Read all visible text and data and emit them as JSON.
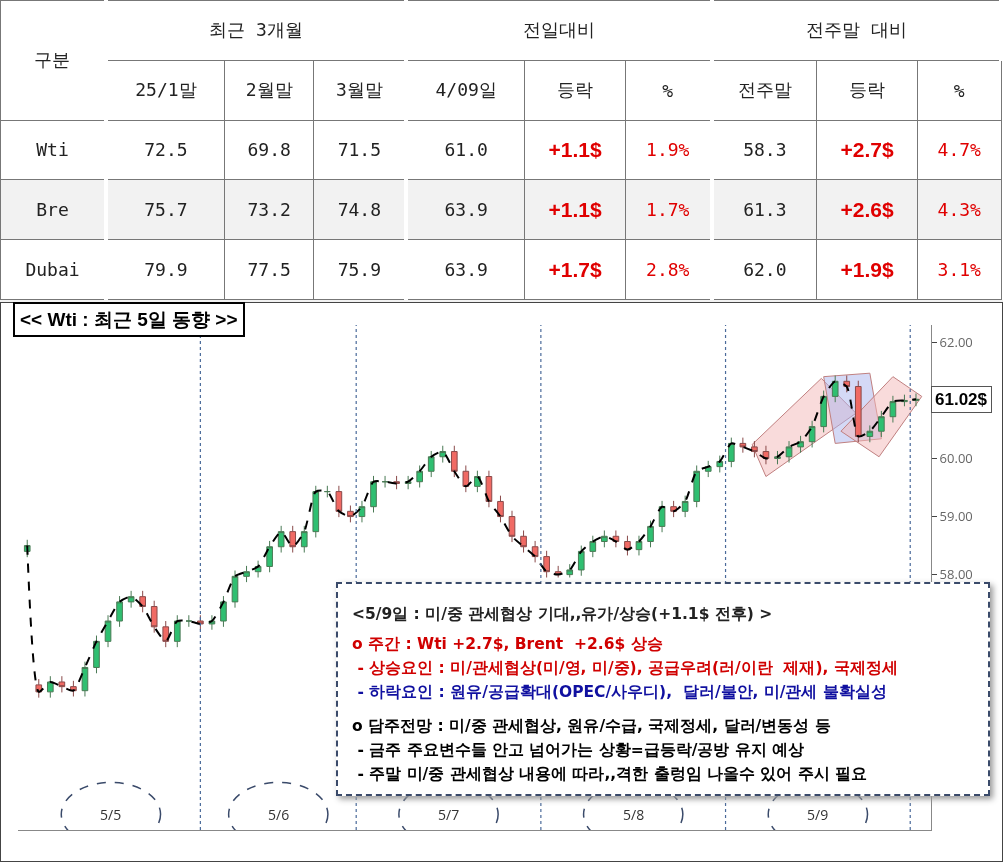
{
  "chart_data": [
    {
      "type": "other",
      "annotations": [
        "구분",
        "최근 3개월",
        "전일대비",
        "전주말 대비"
      ],
      "categories": [
        "25/1말",
        "2월말",
        "3월말",
        "4/09일",
        "등락",
        "%",
        "전주말",
        "등락",
        "%"
      ],
      "y_categories": [
        "Wti",
        "Bre",
        "Dubai"
      ],
      "cell_labels": [
        [
          "72.5",
          "69.8",
          "71.5",
          "61.0",
          "+1.1$",
          "1.9%",
          "58.3",
          "+2.7$",
          "4.7%"
        ],
        [
          "75.7",
          "73.2",
          "74.8",
          "63.9",
          "+1.1$",
          "1.7%",
          "61.3",
          "+2.6$",
          "4.3%"
        ],
        [
          "79.9",
          "77.5",
          "75.9",
          "63.9",
          "+1.7$",
          "2.8%",
          "62.0",
          "+1.9$",
          "3.1%"
        ]
      ]
    },
    {
      "type": "candlestick",
      "title": "<< Wti : 최근 5일 동향 >>",
      "categories": [
        null,
        null,
        null,
        null,
        null,
        null,
        null,
        null,
        null,
        null,
        null,
        null,
        null,
        null,
        null,
        null,
        null,
        null,
        null,
        null,
        null,
        null,
        null,
        null,
        null,
        null,
        null,
        null,
        null,
        null,
        null,
        null,
        null,
        null,
        null,
        null,
        null,
        null,
        null,
        null,
        null,
        null,
        null,
        null,
        null,
        null,
        null,
        null,
        null,
        null,
        null,
        null,
        null,
        null,
        null,
        null,
        null,
        null,
        null,
        null,
        null,
        null,
        null,
        null,
        null,
        null,
        null,
        null,
        null,
        null,
        null,
        null,
        null,
        null,
        null,
        null,
        null,
        null
      ],
      "ohlc": [
        [
          58.4,
          58.6,
          58.3,
          58.5
        ],
        [
          56.1,
          56.2,
          55.88,
          55.98
        ],
        [
          55.98,
          56.25,
          55.88,
          56.15
        ],
        [
          56.15,
          56.25,
          55.97,
          56.07
        ],
        [
          56.07,
          56.17,
          55.9,
          56.0
        ],
        [
          56.0,
          56.5,
          55.9,
          56.4
        ],
        [
          56.4,
          56.95,
          56.3,
          56.85
        ],
        [
          56.85,
          57.3,
          56.75,
          57.2
        ],
        [
          57.2,
          57.63,
          57.1,
          57.53
        ],
        [
          57.53,
          57.72,
          57.43,
          57.62
        ],
        [
          57.62,
          57.72,
          57.35,
          57.45
        ],
        [
          57.45,
          57.55,
          57.0,
          57.1
        ],
        [
          57.1,
          57.2,
          56.75,
          56.85
        ],
        [
          56.85,
          57.3,
          56.75,
          57.2
        ],
        [
          57.2,
          57.3,
          57.1,
          57.2
        ],
        [
          57.2,
          57.3,
          57.05,
          57.15
        ],
        [
          57.15,
          57.3,
          57.05,
          57.2
        ],
        [
          57.2,
          57.63,
          57.1,
          57.53
        ],
        [
          57.53,
          58.07,
          57.43,
          57.97
        ],
        [
          57.97,
          58.15,
          57.87,
          58.05
        ],
        [
          58.05,
          58.24,
          57.95,
          58.14
        ],
        [
          58.14,
          58.58,
          58.04,
          58.48
        ],
        [
          58.48,
          58.84,
          58.38,
          58.74
        ],
        [
          58.74,
          58.84,
          58.38,
          58.48
        ],
        [
          58.48,
          58.84,
          58.38,
          58.74
        ],
        [
          58.74,
          59.53,
          58.64,
          59.43
        ],
        [
          59.43,
          59.53,
          59.33,
          59.43
        ],
        [
          59.43,
          59.53,
          58.99,
          59.09
        ],
        [
          59.09,
          59.19,
          58.9,
          59.0
        ],
        [
          59.0,
          59.27,
          58.9,
          59.17
        ],
        [
          59.17,
          59.7,
          59.07,
          59.6
        ],
        [
          59.6,
          59.7,
          59.5,
          59.6
        ],
        [
          59.6,
          59.7,
          59.47,
          59.57
        ],
        [
          59.57,
          59.7,
          59.47,
          59.6
        ],
        [
          59.6,
          59.88,
          59.5,
          59.78
        ],
        [
          59.78,
          60.13,
          59.68,
          60.03
        ],
        [
          60.03,
          60.22,
          59.93,
          60.12
        ],
        [
          60.12,
          60.22,
          59.68,
          59.78
        ],
        [
          59.78,
          59.88,
          59.42,
          59.52
        ],
        [
          59.52,
          59.79,
          59.42,
          59.69
        ],
        [
          59.69,
          59.79,
          59.16,
          59.26
        ],
        [
          59.26,
          59.36,
          58.9,
          59.0
        ],
        [
          59.0,
          59.1,
          58.56,
          58.66
        ],
        [
          58.66,
          58.76,
          58.38,
          58.48
        ],
        [
          58.48,
          58.58,
          58.21,
          58.31
        ],
        [
          58.31,
          58.41,
          57.95,
          58.05
        ],
        [
          58.05,
          58.15,
          57.95,
          58.0
        ],
        [
          58.0,
          58.18,
          57.95,
          58.08
        ],
        [
          58.08,
          58.5,
          57.98,
          58.4
        ],
        [
          58.4,
          58.67,
          58.3,
          58.57
        ],
        [
          58.57,
          58.76,
          58.47,
          58.66
        ],
        [
          58.66,
          58.76,
          58.47,
          58.57
        ],
        [
          58.57,
          58.67,
          58.33,
          58.43
        ],
        [
          58.43,
          58.67,
          58.33,
          58.57
        ],
        [
          58.57,
          58.93,
          58.47,
          58.83
        ],
        [
          58.83,
          59.27,
          58.73,
          59.17
        ],
        [
          59.17,
          59.27,
          58.99,
          59.09
        ],
        [
          59.09,
          59.36,
          58.99,
          59.26
        ],
        [
          59.26,
          59.88,
          59.16,
          59.78
        ],
        [
          59.78,
          59.96,
          59.68,
          59.86
        ],
        [
          59.86,
          60.05,
          59.76,
          59.95
        ],
        [
          59.95,
          60.36,
          59.85,
          60.26
        ],
        [
          60.26,
          60.36,
          60.1,
          60.2
        ],
        [
          60.2,
          60.3,
          60.02,
          60.12
        ],
        [
          60.12,
          60.22,
          59.9,
          60.0
        ],
        [
          60.0,
          60.13,
          59.9,
          60.03
        ],
        [
          60.03,
          60.3,
          59.93,
          60.2
        ],
        [
          60.2,
          60.39,
          60.1,
          60.29
        ],
        [
          60.29,
          60.65,
          60.19,
          60.55
        ],
        [
          60.55,
          61.17,
          60.45,
          61.07
        ],
        [
          61.07,
          61.43,
          60.97,
          61.33
        ],
        [
          61.33,
          61.43,
          61.14,
          61.24
        ],
        [
          61.24,
          61.34,
          60.28,
          60.38
        ],
        [
          60.38,
          60.57,
          60.28,
          60.47
        ],
        [
          60.47,
          60.82,
          60.37,
          60.72
        ],
        [
          60.72,
          61.08,
          60.62,
          60.98
        ],
        [
          60.98,
          61.1,
          60.9,
          61.0
        ],
        [
          61.0,
          61.12,
          60.9,
          61.02
        ]
      ],
      "series": [
        {
          "type": "line",
          "color": "#000000",
          "line_style": "dashed",
          "values": [
            58.5,
            55.98,
            56.15,
            56.07,
            56.0,
            56.4,
            56.85,
            57.2,
            57.53,
            57.62,
            57.45,
            57.1,
            56.85,
            57.2,
            57.2,
            57.15,
            57.2,
            57.53,
            57.97,
            58.05,
            58.14,
            58.48,
            58.74,
            58.48,
            58.74,
            59.43,
            59.43,
            59.09,
            59.0,
            59.17,
            59.6,
            59.6,
            59.57,
            59.6,
            59.78,
            60.03,
            60.12,
            59.78,
            59.52,
            59.69,
            59.26,
            59.0,
            58.66,
            58.48,
            58.31,
            58.05,
            58.0,
            58.08,
            58.4,
            58.57,
            58.66,
            58.57,
            58.43,
            58.57,
            58.83,
            59.17,
            59.09,
            59.26,
            59.78,
            59.86,
            59.95,
            60.26,
            60.2,
            60.12,
            60.0,
            60.03,
            60.2,
            60.29,
            60.55,
            61.07,
            61.33,
            61.24,
            60.38,
            60.47,
            60.72,
            60.98,
            61.0,
            61.02
          ]
        }
      ],
      "ylim": [
        53.6,
        62.3
      ],
      "yticks": [
        {
          "value": 58,
          "label": "58.00"
        },
        {
          "value": 59,
          "label": "59.00"
        },
        {
          "value": 60,
          "label": "60.00"
        },
        {
          "value": 62,
          "label": "62.00"
        }
      ],
      "tick_labels": "y",
      "grid": false,
      "annotations": [
        "61.02$",
        "5/5",
        "5/6",
        "5/7",
        "5/8",
        "5/9",
        "<5/9일 : 미/중 관세협상 기대,,유가/상승(+1.1$ 전후) >",
        "o 주간 : Wti +2.7$, Brent  +2.6$ 상승",
        " - 상승요인 : 미/관세협상(미/영, 미/중), 공급우려(러/이란  제재), 국제정세",
        " - 하락요인 : 원유/공급확대(OPEC/사우디),  달러/불안, 미/관세 불확실성",
        "o 담주전망 : 미/중 관세협상, 원유/수급, 국제정세, 달러/변동성 등",
        " - 금주 주요변수들 안고 넘어가는 상황=급등락/공방 유지 예상",
        " - 주말 미/중 관세협상 내용에 따라,,격한 출렁임 나올수 있어 주시 필요"
      ]
    }
  ]
}
